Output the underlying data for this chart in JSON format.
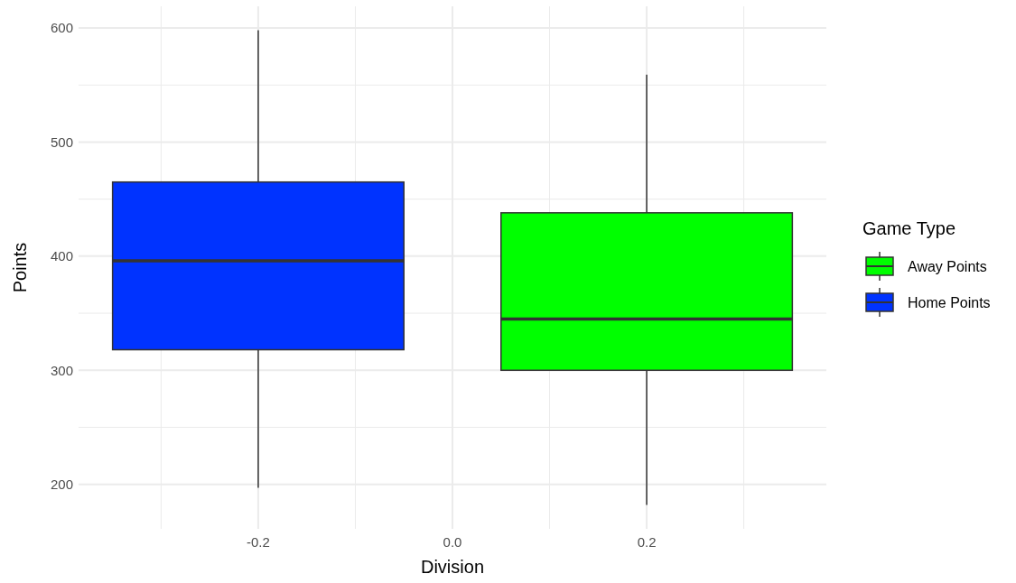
{
  "chart_data": {
    "type": "box",
    "xlabel": "Division",
    "ylabel": "Points",
    "legend_title": "Game Type",
    "x": [
      -0.2,
      0.2
    ],
    "xlim": [
      -0.385,
      0.385
    ],
    "xticks": [
      -0.2,
      {
        "value": 0,
        "label": "0.0"
      },
      0.2
    ],
    "ylim": [
      161,
      619
    ],
    "yticks": [
      200,
      300,
      400,
      500,
      600
    ],
    "grid": true,
    "legend": "right",
    "series": [
      {
        "name": "Away Points",
        "color": "#00ff00",
        "boxes": [
          null,
          {
            "low": 182,
            "q1": 300,
            "median": 345,
            "q3": 438,
            "high": 559
          }
        ]
      },
      {
        "name": "Home Points",
        "color": "#0033ff",
        "boxes": [
          {
            "low": 197,
            "q1": 318,
            "median": 396,
            "q3": 465,
            "high": 598
          },
          null
        ]
      }
    ]
  }
}
